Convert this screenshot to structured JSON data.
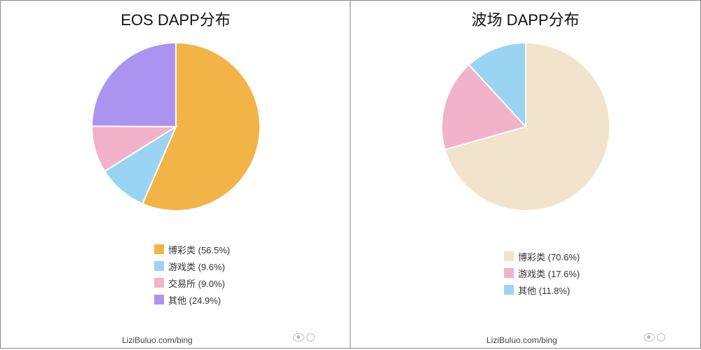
{
  "chart_data": [
    {
      "type": "pie",
      "title": "EOS DAPP分布",
      "legend_position": "bottom",
      "slices": [
        {
          "label": "博彩类",
          "value": 56.5,
          "legend": "博彩类 (56.5%)",
          "color": "#f2b347"
        },
        {
          "label": "游戏类",
          "value": 9.6,
          "legend": "游戏类 (9.6%)",
          "color": "#99d5f3"
        },
        {
          "label": "交易所",
          "value": 9.0,
          "legend": "交易所 (9.0%)",
          "color": "#f2b2ca"
        },
        {
          "label": "其他",
          "value": 24.9,
          "legend": "其他 (24.9%)",
          "color": "#ab94ef"
        }
      ]
    },
    {
      "type": "pie",
      "title": "波场 DAPP分布",
      "legend_position": "bottom",
      "slices": [
        {
          "label": "博彩类",
          "value": 70.6,
          "legend": "博彩类 (70.6%)",
          "color": "#f2e3cc"
        },
        {
          "label": "游戏类",
          "value": 17.6,
          "legend": "游戏类 (17.6%)",
          "color": "#f2b2ca"
        },
        {
          "label": "其他",
          "value": 11.8,
          "legend": "其他 (11.8%)",
          "color": "#99d5f3"
        }
      ]
    }
  ],
  "footer": {
    "source_left": "LiziBuluo.com/bing",
    "source_right": "LiziBuluo.com/bing"
  }
}
